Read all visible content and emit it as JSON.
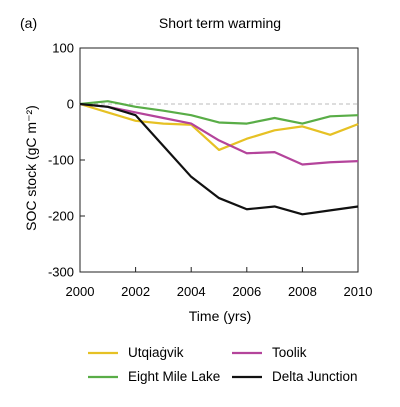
{
  "chart_data": {
    "type": "line",
    "panel_label": "(a)",
    "title": "Short term warming",
    "xlabel": "Time (yrs)",
    "ylabel": "SOC stock (gC m⁻²)",
    "xlim": [
      2000,
      2010
    ],
    "ylim": [
      -300,
      100
    ],
    "xticks": [
      2000,
      2002,
      2004,
      2006,
      2008,
      2010
    ],
    "yticks": [
      100,
      0,
      -100,
      -200,
      -300
    ],
    "zero_reference_line": true,
    "legend_placement": "bottom",
    "x": [
      2000,
      2001,
      2002,
      2003,
      2004,
      2005,
      2006,
      2007,
      2008,
      2009,
      2010
    ],
    "series": [
      {
        "name": "Utqiaġvik",
        "color": "#e6c124",
        "values": [
          0,
          -15,
          -30,
          -35,
          -37,
          -82,
          -62,
          -47,
          -40,
          -55,
          -36
        ]
      },
      {
        "name": "Toolik",
        "color": "#b4449b",
        "values": [
          0,
          -5,
          -15,
          -25,
          -35,
          -65,
          -88,
          -86,
          -108,
          -104,
          -102
        ]
      },
      {
        "name": "Eight Mile Lake",
        "color": "#59ad47",
        "values": [
          0,
          5,
          -5,
          -12,
          -20,
          -33,
          -35,
          -25,
          -35,
          -22,
          -20
        ]
      },
      {
        "name": "Delta Junction",
        "color": "#111111",
        "values": [
          0,
          -5,
          -20,
          -75,
          -130,
          -168,
          -188,
          -183,
          -197,
          -190,
          -183
        ]
      }
    ]
  }
}
